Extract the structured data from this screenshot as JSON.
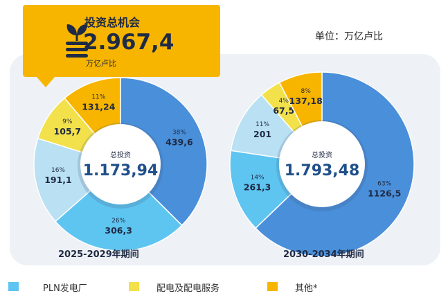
{
  "header": {
    "unit_note": "单位：万亿卢比"
  },
  "callout": {
    "label": "投资总机会",
    "value": "2.967,4",
    "unit": "万亿卢比"
  },
  "colors": {
    "pln_dark": "#4a8fd9",
    "pln_mid": "#5ec5f1",
    "pln_light": "#b9e0f3",
    "distribution": "#f2e14a",
    "other": "#f7b500",
    "text_dark": "#1f2a44"
  },
  "chart_data": [
    {
      "type": "pie",
      "period_label": "2025-2029年期间",
      "center_label": "总投资",
      "total": "1.173,94",
      "slices": [
        {
          "value": 439.6,
          "value_label": "439,6",
          "pct_label": "38%",
          "color": "#4a8fd9"
        },
        {
          "value": 306.3,
          "value_label": "306,3",
          "pct_label": "26%",
          "color": "#5ec5f1"
        },
        {
          "value": 191.1,
          "value_label": "191,1",
          "pct_label": "16%",
          "color": "#b9e0f3"
        },
        {
          "value": 105.7,
          "value_label": "105,7",
          "pct_label": "9%",
          "color": "#f2e14a"
        },
        {
          "value": 131.24,
          "value_label": "131,24",
          "pct_label": "11%",
          "color": "#f7b500"
        }
      ]
    },
    {
      "type": "pie",
      "period_label": "2030-2034年期间",
      "center_label": "总投资",
      "total": "1.793,48",
      "slices": [
        {
          "value": 1126.5,
          "value_label": "1126,5",
          "pct_label": "63%",
          "color": "#4a8fd9"
        },
        {
          "value": 261.3,
          "value_label": "261,3",
          "pct_label": "14%",
          "color": "#5ec5f1"
        },
        {
          "value": 201,
          "value_label": "201",
          "pct_label": "11%",
          "color": "#b9e0f3"
        },
        {
          "value": 67.5,
          "value_label": "67,5",
          "pct_label": "4%",
          "color": "#f2e14a"
        },
        {
          "value": 137.18,
          "value_label": "137,18",
          "pct_label": "8%",
          "color": "#f7b500"
        }
      ]
    }
  ],
  "legend": [
    {
      "label": "PLN发电厂",
      "color": "#5ec5f1"
    },
    {
      "label": "配电及配电服务",
      "color": "#f2e14a"
    },
    {
      "label": "其他*",
      "color": "#f7b500"
    }
  ]
}
